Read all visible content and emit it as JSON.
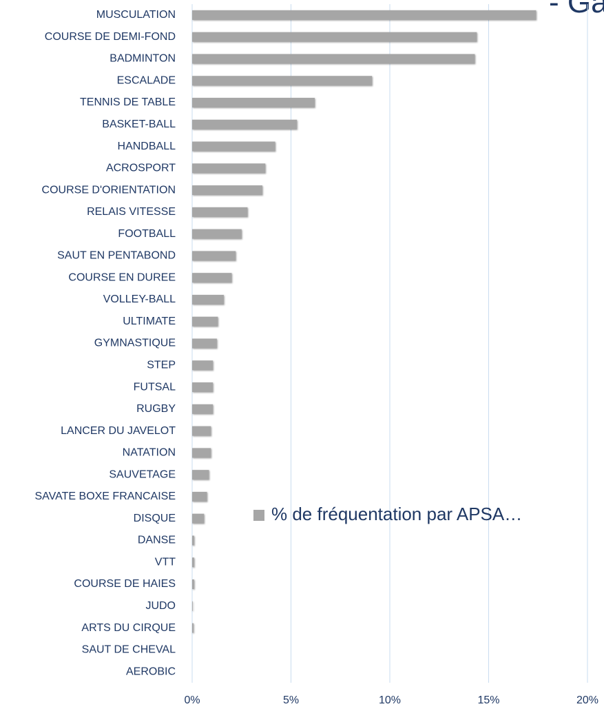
{
  "chart_data": {
    "type": "bar",
    "orientation": "horizontal",
    "title": "- Ga",
    "categories": [
      "MUSCULATION",
      "COURSE DE DEMI-FOND",
      "BADMINTON",
      "ESCALADE",
      "TENNIS DE TABLE",
      "BASKET-BALL",
      "HANDBALL",
      "ACROSPORT",
      "COURSE D'ORIENTATION",
      "RELAIS VITESSE",
      "FOOTBALL",
      "SAUT EN PENTABOND",
      "COURSE EN DUREE",
      "VOLLEY-BALL",
      "ULTIMATE",
      "GYMNASTIQUE",
      "STEP",
      "FUTSAL",
      "RUGBY",
      "LANCER DU JAVELOT",
      "NATATION",
      "SAUVETAGE",
      "SAVATE BOXE FRANCAISE",
      "DISQUE",
      "DANSE",
      "VTT",
      "COURSE DE HAIES",
      "JUDO",
      "ARTS DU CIRQUE",
      "SAUT DE CHEVAL",
      "AEROBIC"
    ],
    "series": [
      {
        "name": "% de fréquentation par APSA…",
        "color": "#a6a6a6",
        "values": [
          17.4,
          14.4,
          14.3,
          9.1,
          6.2,
          5.3,
          4.2,
          3.7,
          3.55,
          2.8,
          2.5,
          2.2,
          2.0,
          1.6,
          1.3,
          1.25,
          1.05,
          1.05,
          1.05,
          0.95,
          0.95,
          0.85,
          0.75,
          0.6,
          0.1,
          0.1,
          0.1,
          0.03,
          0.07,
          0,
          0
        ]
      }
    ],
    "xlim": [
      0,
      20
    ],
    "xticks": [
      {
        "value": 0,
        "label": "0%"
      },
      {
        "value": 5,
        "label": "5%"
      },
      {
        "value": 10,
        "label": "10%"
      },
      {
        "value": 15,
        "label": "15%"
      },
      {
        "value": 20,
        "label": "20%"
      }
    ],
    "grid": true,
    "legend": "center-right"
  }
}
